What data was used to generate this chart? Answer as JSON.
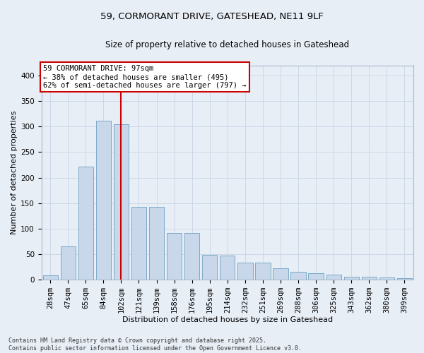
{
  "title_line1": "59, CORMORANT DRIVE, GATESHEAD, NE11 9LF",
  "title_line2": "Size of property relative to detached houses in Gateshead",
  "xlabel": "Distribution of detached houses by size in Gateshead",
  "ylabel": "Number of detached properties",
  "categories": [
    "28sqm",
    "47sqm",
    "65sqm",
    "84sqm",
    "102sqm",
    "121sqm",
    "139sqm",
    "158sqm",
    "176sqm",
    "195sqm",
    "214sqm",
    "232sqm",
    "251sqm",
    "269sqm",
    "288sqm",
    "306sqm",
    "325sqm",
    "343sqm",
    "362sqm",
    "380sqm",
    "399sqm"
  ],
  "values": [
    9,
    65,
    221,
    312,
    305,
    143,
    143,
    92,
    91,
    49,
    47,
    33,
    33,
    22,
    15,
    12,
    10,
    5,
    6,
    4,
    3
  ],
  "bar_color": "#c8d8ea",
  "bar_edge_color": "#7aaac8",
  "vline_x_idx": 4,
  "vline_color": "#cc0000",
  "annotation_text": "59 CORMORANT DRIVE: 97sqm\n← 38% of detached houses are smaller (495)\n62% of semi-detached houses are larger (797) →",
  "annotation_box_facecolor": "#ffffff",
  "annotation_box_edgecolor": "#cc0000",
  "grid_color": "#ccd8e8",
  "background_color": "#e8eef6",
  "footer_text": "Contains HM Land Registry data © Crown copyright and database right 2025.\nContains public sector information licensed under the Open Government Licence v3.0.",
  "ylim": [
    0,
    420
  ],
  "yticks": [
    0,
    50,
    100,
    150,
    200,
    250,
    300,
    350,
    400
  ],
  "title1_fontsize": 9.5,
  "title2_fontsize": 8.5,
  "xlabel_fontsize": 8,
  "ylabel_fontsize": 8,
  "tick_fontsize": 7.5,
  "annotation_fontsize": 7.5,
  "footer_fontsize": 6
}
